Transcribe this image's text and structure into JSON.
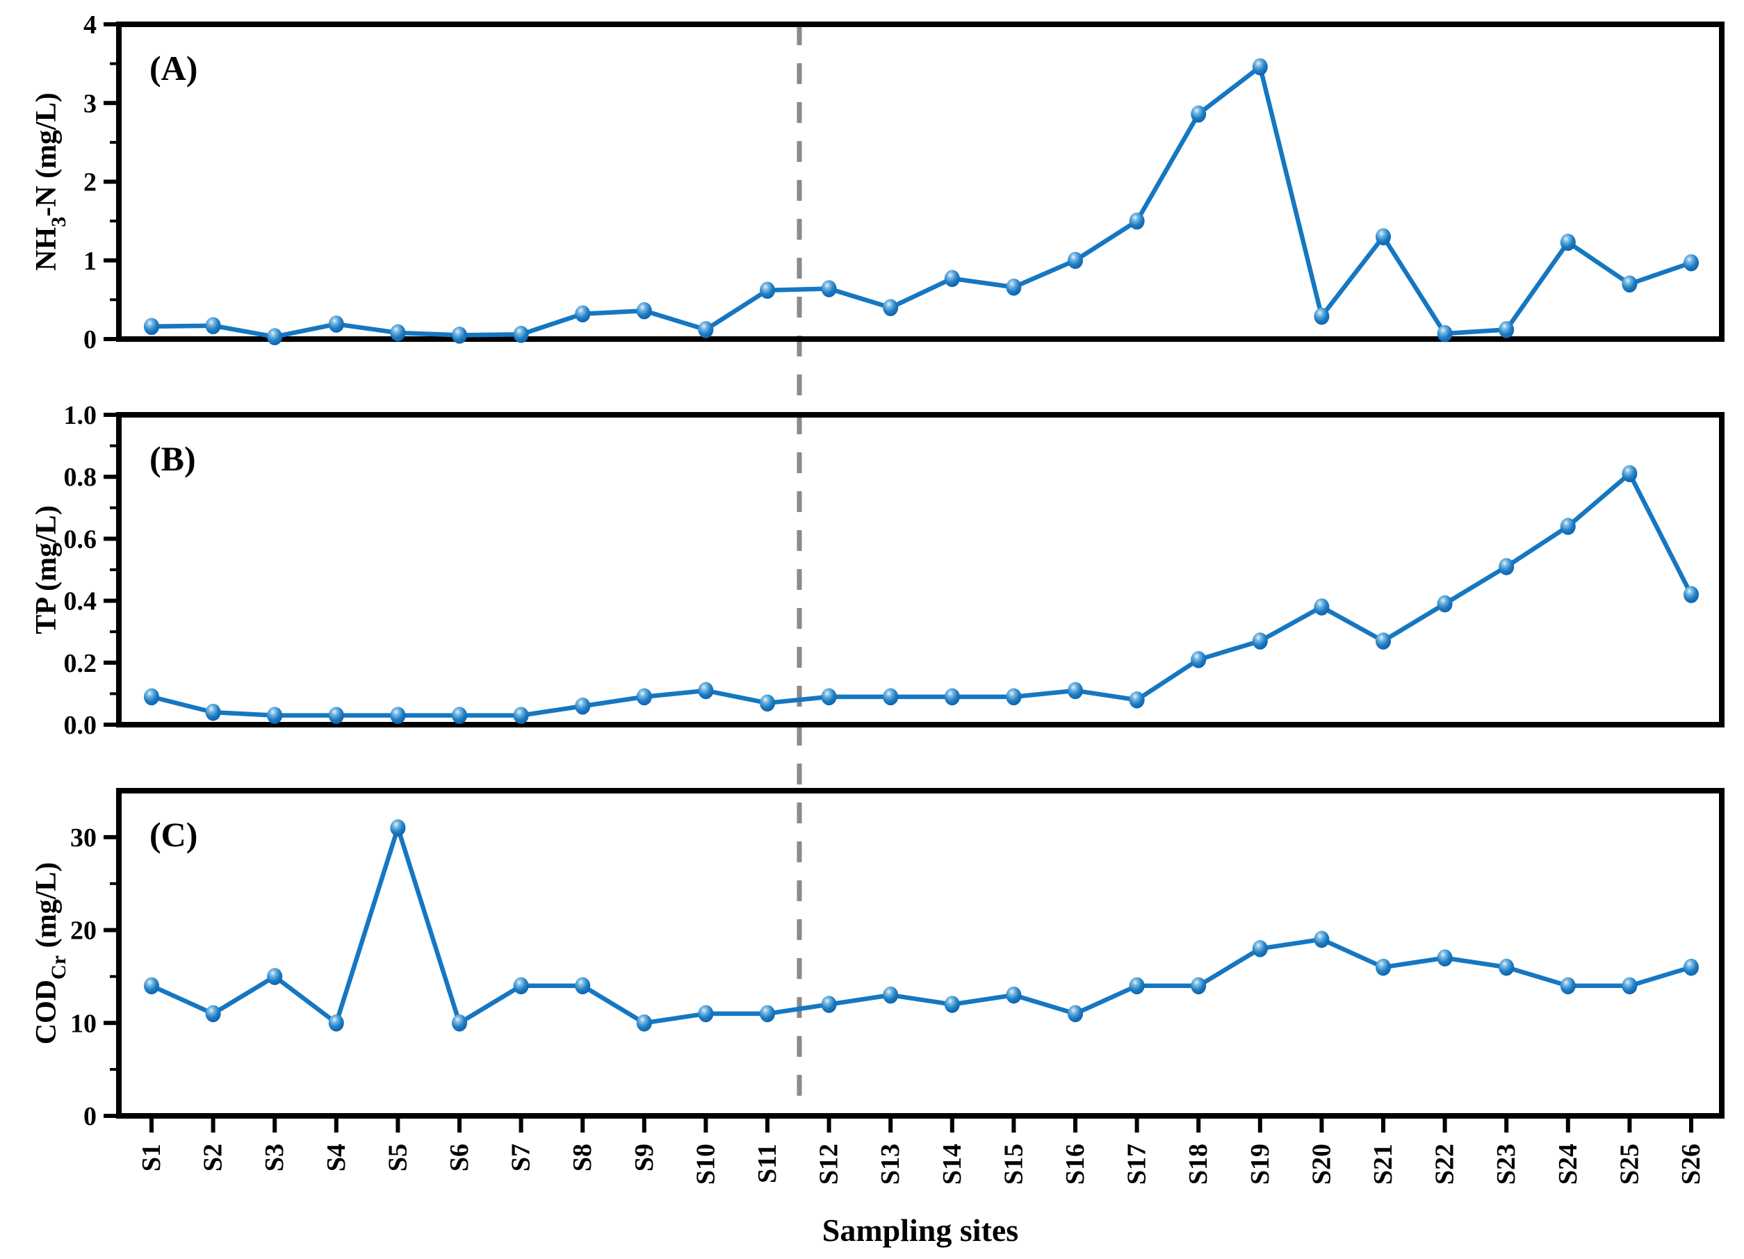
{
  "figure": {
    "x_axis_title": "Sampling sites",
    "background_color": "#ffffff",
    "axis_color": "#000000",
    "line_color": "#1577c2",
    "marker_gradient": [
      "#eaf4fb",
      "#7dbbe4",
      "#1e7ec4",
      "#0a5aa6"
    ],
    "divider_color": "#8a8a8a",
    "divider_style": "dashed",
    "divider_between_sites": [
      "S11",
      "S12"
    ]
  },
  "chart_data": [
    {
      "type": "line",
      "panel_label": "(A)",
      "ylabel": "NH3-N (mg/L)",
      "ylabel_parts": [
        {
          "t": "NH"
        },
        {
          "t": "3",
          "sub": true
        },
        {
          "t": "-N (mg/L)"
        }
      ],
      "xlabel": "",
      "categories": [
        "S1",
        "S2",
        "S3",
        "S4",
        "S5",
        "S6",
        "S7",
        "S8",
        "S9",
        "S10",
        "S11",
        "S12",
        "S13",
        "S14",
        "S15",
        "S16",
        "S17",
        "S18",
        "S19",
        "S20",
        "S21",
        "S22",
        "S23",
        "S24",
        "S25",
        "S26"
      ],
      "values": [
        0.16,
        0.17,
        0.03,
        0.19,
        0.08,
        0.05,
        0.06,
        0.32,
        0.36,
        0.12,
        0.62,
        0.64,
        0.4,
        0.77,
        0.66,
        1.0,
        1.5,
        2.86,
        3.46,
        0.29,
        1.3,
        0.07,
        0.12,
        1.23,
        0.7,
        0.97
      ],
      "ylim": [
        0,
        4
      ],
      "yticks": [
        {
          "v": 0,
          "label": "0"
        },
        {
          "v": 1,
          "label": "1"
        },
        {
          "v": 2,
          "label": "2"
        },
        {
          "v": 3,
          "label": "3"
        },
        {
          "v": 4,
          "label": "4"
        }
      ],
      "minor_tick_step": 0.5,
      "grid": false
    },
    {
      "type": "line",
      "panel_label": "(B)",
      "ylabel": "TP (mg/L)",
      "ylabel_parts": [
        {
          "t": "TP (mg/L)"
        }
      ],
      "xlabel": "",
      "categories": [
        "S1",
        "S2",
        "S3",
        "S4",
        "S5",
        "S6",
        "S7",
        "S8",
        "S9",
        "S10",
        "S11",
        "S12",
        "S13",
        "S14",
        "S15",
        "S16",
        "S17",
        "S18",
        "S19",
        "S20",
        "S21",
        "S22",
        "S23",
        "S24",
        "S25",
        "S26"
      ],
      "values": [
        0.09,
        0.04,
        0.03,
        0.03,
        0.03,
        0.03,
        0.03,
        0.06,
        0.09,
        0.11,
        0.07,
        0.09,
        0.09,
        0.09,
        0.09,
        0.11,
        0.08,
        0.21,
        0.27,
        0.38,
        0.27,
        0.39,
        0.51,
        0.64,
        0.81,
        0.42
      ],
      "ylim": [
        0,
        1.0
      ],
      "yticks": [
        {
          "v": 0.0,
          "label": "0.0"
        },
        {
          "v": 0.2,
          "label": "0.2"
        },
        {
          "v": 0.4,
          "label": "0.4"
        },
        {
          "v": 0.6,
          "label": "0.6"
        },
        {
          "v": 0.8,
          "label": "0.8"
        },
        {
          "v": 1.0,
          "label": "1.0"
        }
      ],
      "minor_tick_step": 0.1,
      "grid": false
    },
    {
      "type": "line",
      "panel_label": "(C)",
      "ylabel": "CODCr (mg/L)",
      "ylabel_parts": [
        {
          "t": "COD"
        },
        {
          "t": "Cr",
          "sub": true
        },
        {
          "t": " (mg/L)"
        }
      ],
      "xlabel": "Sampling sites",
      "categories": [
        "S1",
        "S2",
        "S3",
        "S4",
        "S5",
        "S6",
        "S7",
        "S8",
        "S9",
        "S10",
        "S11",
        "S12",
        "S13",
        "S14",
        "S15",
        "S16",
        "S17",
        "S18",
        "S19",
        "S20",
        "S21",
        "S22",
        "S23",
        "S24",
        "S25",
        "S26"
      ],
      "values": [
        14,
        11,
        15,
        10,
        31,
        10,
        14,
        14,
        10,
        11,
        11,
        12,
        13,
        12,
        13,
        11,
        14,
        14,
        18,
        19,
        16,
        17,
        16,
        14,
        14,
        16
      ],
      "ylim": [
        0,
        35
      ],
      "yticks": [
        {
          "v": 0,
          "label": "0"
        },
        {
          "v": 10,
          "label": "10"
        },
        {
          "v": 20,
          "label": "20"
        },
        {
          "v": 30,
          "label": "30"
        }
      ],
      "minor_tick_step": 5,
      "grid": false
    }
  ]
}
